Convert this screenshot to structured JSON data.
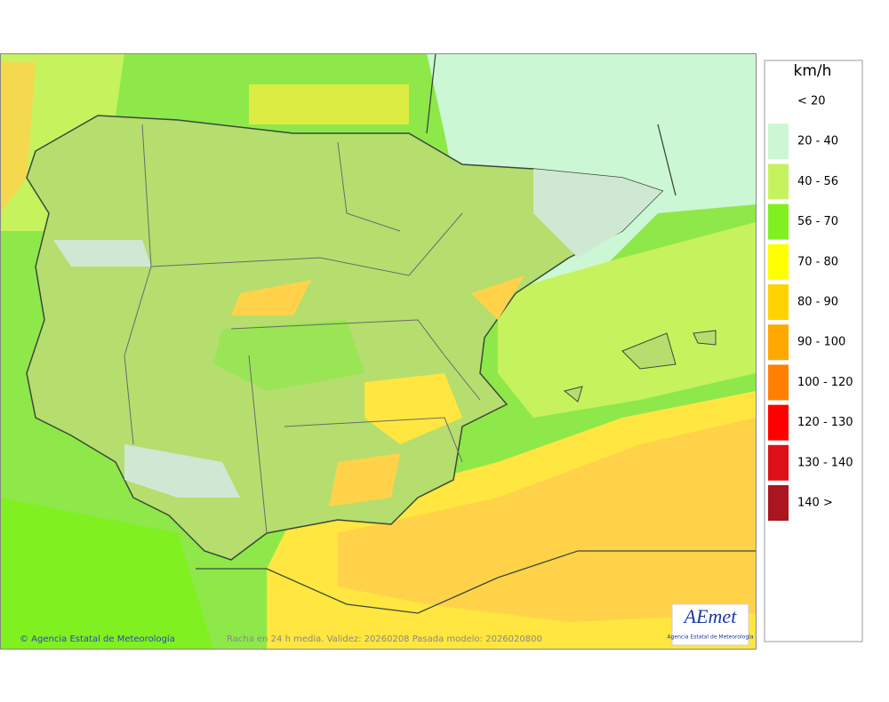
{
  "legend": {
    "title": "km/h",
    "items": [
      {
        "label": "< 20"
      },
      {
        "label": "20 - 40",
        "color": "#ccf7d4"
      },
      {
        "label": "40 - 56",
        "color": "#c6f25e"
      },
      {
        "label": "56 - 70",
        "color": "#80f020"
      },
      {
        "label": "70 - 80",
        "color": "#ffff00"
      },
      {
        "label": "80 - 90",
        "color": "#ffd200"
      },
      {
        "label": "90 - 100",
        "color": "#ffa800"
      },
      {
        "label": "100 - 120",
        "color": "#ff8000"
      },
      {
        "label": "120 - 130",
        "color": "#ff0000"
      },
      {
        "label": "130 - 140",
        "color": "#dd1018"
      },
      {
        "label": "140 >",
        "color": "#aa1520"
      }
    ]
  },
  "footer": {
    "credit": "© Agencia Estatal de Meteorología",
    "caption": "Racha en 24 h media. Validez: 20260208 Pasada modelo: 2026020800"
  },
  "logo": {
    "name": "AEmet",
    "subtitle": "Agencia Estatal de Meteorología"
  }
}
